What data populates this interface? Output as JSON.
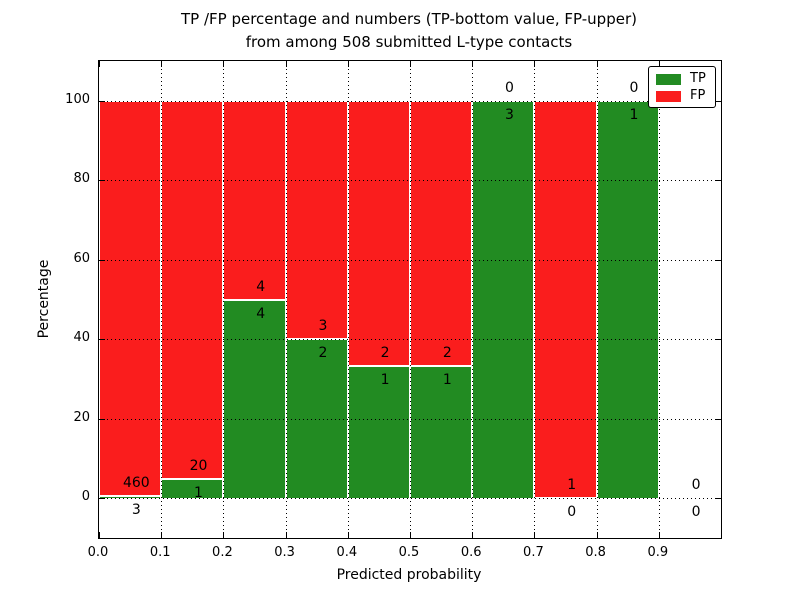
{
  "title": {
    "line1": "TP /FP percentage and numbers (TP-bottom value, FP-upper)",
    "line2": "from among 508 submitted L-type contacts"
  },
  "x_axis": {
    "label": "Predicted probability",
    "tick_labels": [
      "0.0",
      "0.1",
      "0.2",
      "0.3",
      "0.4",
      "0.5",
      "0.6",
      "0.7",
      "0.8",
      "0.9"
    ],
    "tick_values": [
      0.0,
      0.1,
      0.2,
      0.3,
      0.4,
      0.5,
      0.6,
      0.7,
      0.8,
      0.9
    ]
  },
  "y_axis": {
    "label": "Percentage",
    "tick_labels": [
      "0",
      "20",
      "40",
      "60",
      "80",
      "100"
    ],
    "tick_values": [
      0,
      20,
      40,
      60,
      80,
      100
    ]
  },
  "legend": {
    "position": "upper right",
    "items": [
      {
        "label": "TP",
        "color": "#228b22"
      },
      {
        "label": "FP",
        "color": "#fa1d1d"
      }
    ]
  },
  "colors": {
    "tp": "#228b22",
    "fp": "#fa1d1d",
    "bar_edge": "#ffffff",
    "grid": "#000000",
    "background": "#ffffff"
  },
  "chart_data": {
    "type": "bar",
    "stacked": true,
    "normalized_to_percent": true,
    "title": "TP /FP percentage and numbers (TP-bottom value, FP-upper) from among 508 submitted L-type contacts",
    "xlabel": "Predicted probability",
    "ylabel": "Percentage",
    "xlim": [
      0.0,
      1.0
    ],
    "ylim": [
      -10,
      110
    ],
    "grid": true,
    "legend_position": "upper right",
    "total_contacts": 508,
    "categories": [
      "0.0-0.1",
      "0.1-0.2",
      "0.2-0.3",
      "0.3-0.4",
      "0.4-0.5",
      "0.5-0.6",
      "0.6-0.7",
      "0.7-0.8",
      "0.8-0.9",
      "0.9-1.0"
    ],
    "series": [
      {
        "name": "TP",
        "values": [
          3,
          1,
          4,
          2,
          1,
          1,
          3,
          0,
          1,
          0
        ]
      },
      {
        "name": "FP",
        "values": [
          460,
          20,
          4,
          3,
          2,
          2,
          0,
          1,
          0,
          0
        ]
      }
    ],
    "bins": [
      {
        "range": [
          0.0,
          0.1
        ],
        "tp": 3,
        "fp": 460,
        "tp_pct": 0.65,
        "fp_pct": 99.35
      },
      {
        "range": [
          0.1,
          0.2
        ],
        "tp": 1,
        "fp": 20,
        "tp_pct": 4.76,
        "fp_pct": 95.24
      },
      {
        "range": [
          0.2,
          0.3
        ],
        "tp": 4,
        "fp": 4,
        "tp_pct": 50.0,
        "fp_pct": 50.0
      },
      {
        "range": [
          0.3,
          0.4
        ],
        "tp": 2,
        "fp": 3,
        "tp_pct": 40.0,
        "fp_pct": 60.0
      },
      {
        "range": [
          0.4,
          0.5
        ],
        "tp": 1,
        "fp": 2,
        "tp_pct": 33.33,
        "fp_pct": 66.67
      },
      {
        "range": [
          0.5,
          0.6
        ],
        "tp": 1,
        "fp": 2,
        "tp_pct": 33.33,
        "fp_pct": 66.67
      },
      {
        "range": [
          0.6,
          0.7
        ],
        "tp": 3,
        "fp": 0,
        "tp_pct": 100.0,
        "fp_pct": 0.0
      },
      {
        "range": [
          0.7,
          0.8
        ],
        "tp": 0,
        "fp": 1,
        "tp_pct": 0.0,
        "fp_pct": 100.0
      },
      {
        "range": [
          0.8,
          0.9
        ],
        "tp": 1,
        "fp": 0,
        "tp_pct": 100.0,
        "fp_pct": 0.0
      },
      {
        "range": [
          0.9,
          1.0
        ],
        "tp": 0,
        "fp": 0,
        "tp_pct": null,
        "fp_pct": null
      }
    ]
  }
}
